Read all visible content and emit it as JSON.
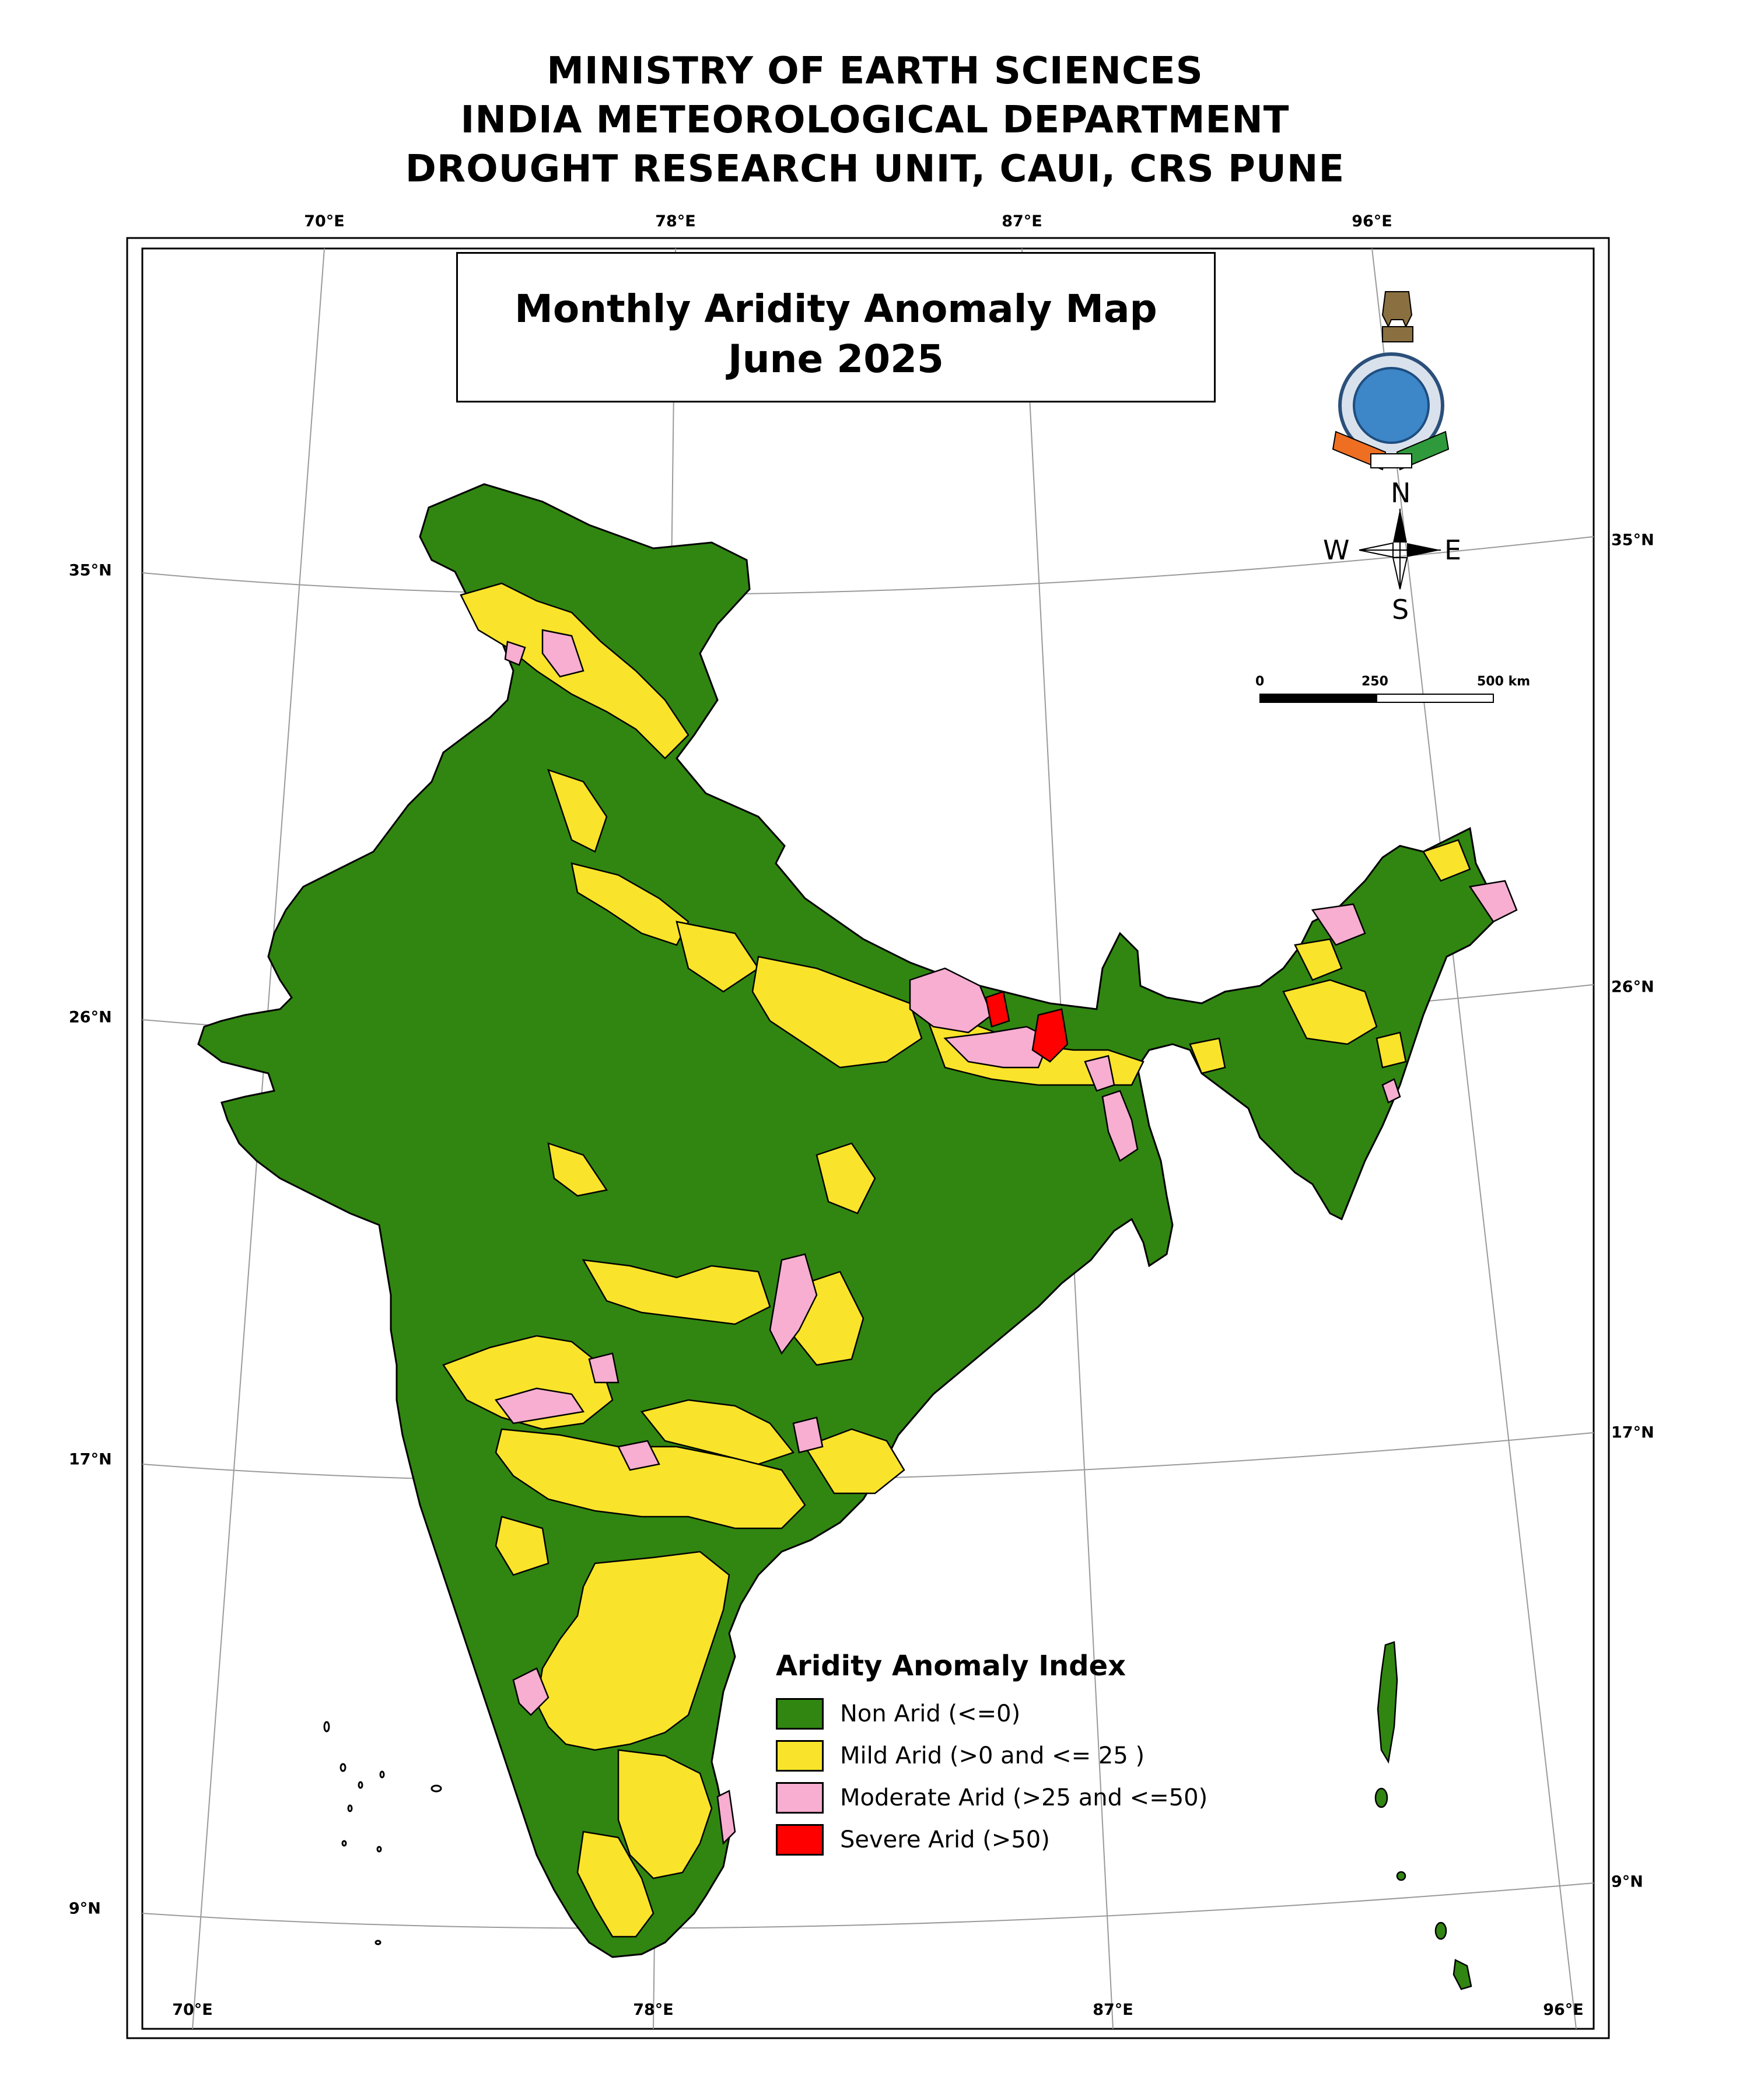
{
  "header": {
    "line1": "MINISTRY OF EARTH SCIENCES",
    "line2": "INDIA METEOROLOGICAL DEPARTMENT",
    "line3": "DROUGHT RESEARCH UNIT, CAUI, CRS PUNE"
  },
  "map_title": {
    "line1": "Monthly Aridity Anomaly Map",
    "line2": "June 2025"
  },
  "graticule": {
    "top_lon": [
      "70°E",
      "78°E",
      "87°E",
      "96°E"
    ],
    "bottom_lon": [
      "70°E",
      "78°E",
      "87°E",
      "96°E"
    ],
    "left_lat": [
      "35°N",
      "26°N",
      "17°N",
      "9°N"
    ],
    "right_lat": [
      "35°N",
      "26°N",
      "17°N",
      "9°N"
    ]
  },
  "compass": {
    "n": "N",
    "s": "S",
    "e": "E",
    "w": "W"
  },
  "scale_bar": {
    "t0": "0",
    "t1": "250",
    "t2": "500 km"
  },
  "legend": {
    "title": "Aridity Anomaly Index",
    "items": [
      {
        "label": "Non Arid (<=0)",
        "color": "#318611"
      },
      {
        "label": "Mild Arid (>0 and <= 25 )",
        "color": "#F9E42B"
      },
      {
        "label": "Moderate Arid (>25 and <=50)",
        "color": "#F7AED0"
      },
      {
        "label": "Severe Arid (>50)",
        "color": "#FF0000"
      }
    ]
  },
  "colors": {
    "non_arid": "#318611",
    "mild_arid": "#F9E42B",
    "moderate_arid": "#F7AED0",
    "severe_arid": "#FF0000"
  }
}
